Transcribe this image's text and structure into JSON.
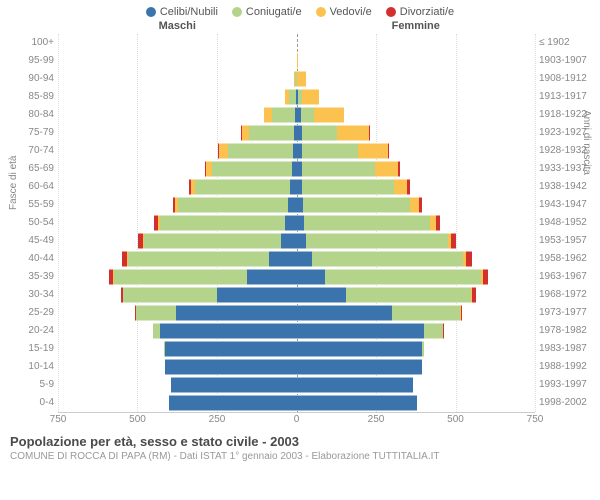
{
  "chart": {
    "type": "population-pyramid",
    "max_value": 750,
    "legend": [
      {
        "label": "Celibi/Nubili",
        "color": "#3b74ad"
      },
      {
        "label": "Coniugati/e",
        "color": "#b4d38b"
      },
      {
        "label": "Vedovi/e",
        "color": "#fcc250"
      },
      {
        "label": "Divorziati/e",
        "color": "#d1302f"
      }
    ],
    "headers": {
      "left": "Maschi",
      "right": "Femmine"
    },
    "axis_titles": {
      "left": "Fasce di età",
      "right": "Anni di nascita"
    },
    "x_ticks": [
      750,
      500,
      250,
      0,
      250,
      500,
      750
    ],
    "colors": {
      "single": "#3b74ad",
      "married": "#b4d38b",
      "widowed": "#fcc250",
      "divorced": "#d1302f",
      "grid": "#dddddd",
      "center": "#999999"
    },
    "rows": [
      {
        "age": "100+",
        "birth": "≤ 1902",
        "m": {
          "s": 0,
          "c": 0,
          "v": 0,
          "d": 0
        },
        "f": {
          "s": 0,
          "c": 0,
          "v": 0,
          "d": 0
        }
      },
      {
        "age": "95-99",
        "birth": "1903-1907",
        "m": {
          "s": 0,
          "c": 0,
          "v": 0,
          "d": 0
        },
        "f": {
          "s": 1,
          "c": 0,
          "v": 3,
          "d": 0
        }
      },
      {
        "age": "90-94",
        "birth": "1908-1912",
        "m": {
          "s": 0,
          "c": 4,
          "v": 5,
          "d": 0
        },
        "f": {
          "s": 2,
          "c": 1,
          "v": 28,
          "d": 0
        }
      },
      {
        "age": "85-89",
        "birth": "1913-1917",
        "m": {
          "s": 3,
          "c": 20,
          "v": 14,
          "d": 0
        },
        "f": {
          "s": 6,
          "c": 10,
          "v": 55,
          "d": 0
        }
      },
      {
        "age": "80-84",
        "birth": "1918-1922",
        "m": {
          "s": 6,
          "c": 70,
          "v": 25,
          "d": 0
        },
        "f": {
          "s": 15,
          "c": 40,
          "v": 95,
          "d": 0
        }
      },
      {
        "age": "75-79",
        "birth": "1923-1927",
        "m": {
          "s": 8,
          "c": 140,
          "v": 25,
          "d": 2
        },
        "f": {
          "s": 18,
          "c": 110,
          "v": 100,
          "d": 2
        }
      },
      {
        "age": "70-74",
        "birth": "1928-1932",
        "m": {
          "s": 12,
          "c": 205,
          "v": 28,
          "d": 3
        },
        "f": {
          "s": 18,
          "c": 175,
          "v": 95,
          "d": 4
        }
      },
      {
        "age": "65-69",
        "birth": "1933-1937",
        "m": {
          "s": 15,
          "c": 250,
          "v": 20,
          "d": 4
        },
        "f": {
          "s": 18,
          "c": 230,
          "v": 70,
          "d": 6
        }
      },
      {
        "age": "60-64",
        "birth": "1938-1942",
        "m": {
          "s": 20,
          "c": 300,
          "v": 12,
          "d": 6
        },
        "f": {
          "s": 18,
          "c": 290,
          "v": 40,
          "d": 8
        }
      },
      {
        "age": "55-59",
        "birth": "1943-1947",
        "m": {
          "s": 28,
          "c": 345,
          "v": 8,
          "d": 9
        },
        "f": {
          "s": 22,
          "c": 335,
          "v": 28,
          "d": 10
        }
      },
      {
        "age": "50-54",
        "birth": "1948-1952",
        "m": {
          "s": 35,
          "c": 395,
          "v": 6,
          "d": 12
        },
        "f": {
          "s": 25,
          "c": 395,
          "v": 18,
          "d": 14
        }
      },
      {
        "age": "45-49",
        "birth": "1953-1957",
        "m": {
          "s": 50,
          "c": 430,
          "v": 4,
          "d": 14
        },
        "f": {
          "s": 30,
          "c": 445,
          "v": 12,
          "d": 16
        }
      },
      {
        "age": "40-44",
        "birth": "1958-1962",
        "m": {
          "s": 85,
          "c": 445,
          "v": 2,
          "d": 16
        },
        "f": {
          "s": 50,
          "c": 475,
          "v": 8,
          "d": 18
        }
      },
      {
        "age": "35-39",
        "birth": "1963-1967",
        "m": {
          "s": 155,
          "c": 420,
          "v": 1,
          "d": 15
        },
        "f": {
          "s": 90,
          "c": 490,
          "v": 5,
          "d": 18
        }
      },
      {
        "age": "30-34",
        "birth": "1968-1972",
        "m": {
          "s": 250,
          "c": 295,
          "v": 0,
          "d": 8
        },
        "f": {
          "s": 155,
          "c": 395,
          "v": 2,
          "d": 12
        }
      },
      {
        "age": "25-29",
        "birth": "1973-1977",
        "m": {
          "s": 380,
          "c": 125,
          "v": 0,
          "d": 3
        },
        "f": {
          "s": 300,
          "c": 215,
          "v": 1,
          "d": 5
        }
      },
      {
        "age": "20-24",
        "birth": "1978-1982",
        "m": {
          "s": 430,
          "c": 22,
          "v": 0,
          "d": 0
        },
        "f": {
          "s": 400,
          "c": 60,
          "v": 0,
          "d": 1
        }
      },
      {
        "age": "15-19",
        "birth": "1983-1987",
        "m": {
          "s": 415,
          "c": 1,
          "v": 0,
          "d": 0
        },
        "f": {
          "s": 395,
          "c": 5,
          "v": 0,
          "d": 0
        }
      },
      {
        "age": "10-14",
        "birth": "1988-1992",
        "m": {
          "s": 415,
          "c": 0,
          "v": 0,
          "d": 0
        },
        "f": {
          "s": 395,
          "c": 0,
          "v": 0,
          "d": 0
        }
      },
      {
        "age": "5-9",
        "birth": "1993-1997",
        "m": {
          "s": 395,
          "c": 0,
          "v": 0,
          "d": 0
        },
        "f": {
          "s": 365,
          "c": 0,
          "v": 0,
          "d": 0
        }
      },
      {
        "age": "0-4",
        "birth": "1998-2002",
        "m": {
          "s": 400,
          "c": 0,
          "v": 0,
          "d": 0
        },
        "f": {
          "s": 380,
          "c": 0,
          "v": 0,
          "d": 0
        }
      }
    ]
  },
  "footer": {
    "title": "Popolazione per età, sesso e stato civile - 2003",
    "subtitle": "COMUNE DI ROCCA DI PAPA (RM) - Dati ISTAT 1° gennaio 2003 - Elaborazione TUTTITALIA.IT"
  }
}
